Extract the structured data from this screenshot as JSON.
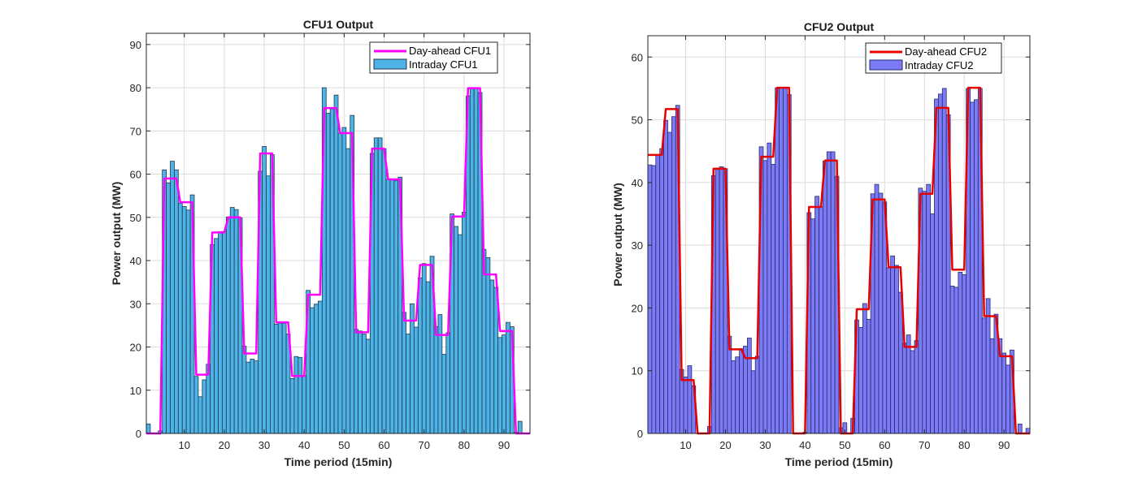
{
  "chart_data": [
    {
      "type": "bar",
      "title": "CFU1 Output",
      "xlabel": "Time period (15min)",
      "ylabel": "Power output (MW)",
      "xlim": [
        0.5,
        96.5
      ],
      "ylim": [
        0,
        92.6
      ],
      "xticks": [
        10,
        20,
        30,
        40,
        50,
        60,
        70,
        80,
        90
      ],
      "yticks": [
        0,
        10,
        20,
        30,
        40,
        50,
        60,
        70,
        80,
        90
      ],
      "grid": true,
      "legend_position": "top-right",
      "x": "periods 1..96",
      "series": [
        {
          "name": "Day-ahead CFU1",
          "kind": "line",
          "color": "#ff00ff",
          "values": [
            0,
            0,
            0,
            0,
            59,
            59,
            59,
            59,
            53.5,
            53.5,
            53.5,
            53.5,
            13.6,
            13.6,
            13.6,
            13.6,
            46.5,
            46.5,
            46.5,
            46.5,
            50,
            50,
            50,
            50,
            18.5,
            18.5,
            18.5,
            18.5,
            64.8,
            64.8,
            64.8,
            64.8,
            25.7,
            25.7,
            25.7,
            25.7,
            13.3,
            13.3,
            13.3,
            13.3,
            32.1,
            32.1,
            32.1,
            32.1,
            75.3,
            75.3,
            75.3,
            75.3,
            69.5,
            69.5,
            69.5,
            69.5,
            23.4,
            23.4,
            23.4,
            23.4,
            65.9,
            65.9,
            65.9,
            65.9,
            58.8,
            58.8,
            58.8,
            58.8,
            26.1,
            26.1,
            26.1,
            26.1,
            39.0,
            39.0,
            39.0,
            39.0,
            22.8,
            22.8,
            22.8,
            22.8,
            50.2,
            50.2,
            50.2,
            50.2,
            79.9,
            79.9,
            79.9,
            79.9,
            36.8,
            36.8,
            36.8,
            36.8,
            23.7,
            23.7,
            23.7,
            23.7,
            0,
            0,
            0,
            0
          ]
        },
        {
          "name": "Intraday CFU1",
          "kind": "bar",
          "color": "#4db3e6",
          "values": [
            2.2,
            0,
            0,
            0.6,
            61,
            58,
            63,
            61,
            53.3,
            52.5,
            51.7,
            55.2,
            13.2,
            8.5,
            12.4,
            16,
            43.7,
            45.1,
            46.7,
            46.7,
            50.1,
            52.3,
            51.8,
            49.9,
            20.2,
            16.5,
            17.2,
            16.8,
            60.7,
            66.4,
            59.6,
            64.5,
            25.3,
            25.5,
            25.5,
            23.0,
            12.7,
            17.8,
            17.6,
            13.4,
            33.1,
            29.1,
            29.9,
            30.6,
            80.0,
            74.1,
            75.1,
            78.3,
            69.5,
            70.8,
            65.9,
            73.6,
            24.1,
            23.7,
            23.0,
            21.8,
            64.8,
            68.4,
            68.4,
            65.9,
            58.8,
            58.8,
            58.5,
            59.3,
            28.0,
            23.0,
            30.0,
            24.6,
            36.0,
            39.3,
            35.1,
            41.0,
            24.7,
            27.5,
            18.3,
            23.3,
            50.8,
            47.9,
            46.0,
            51.2,
            78.1,
            79.9,
            79.9,
            78.9,
            42.6,
            40.7,
            35.5,
            33.8,
            22.2,
            22.8,
            25.7,
            24.7,
            0.3,
            2.8,
            0,
            0
          ]
        }
      ]
    },
    {
      "type": "bar",
      "title": "CFU2 Output",
      "xlabel": "Time period (15min)",
      "ylabel": "Power output (MW)",
      "xlim": [
        0.5,
        96.5
      ],
      "ylim": [
        0,
        63.4
      ],
      "xticks": [
        10,
        20,
        30,
        40,
        50,
        60,
        70,
        80,
        90
      ],
      "yticks": [
        0,
        10,
        20,
        30,
        40,
        50,
        60
      ],
      "grid": true,
      "legend_position": "top-right",
      "x": "periods 1..96",
      "series": [
        {
          "name": "Day-ahead CFU2",
          "kind": "line",
          "color": "#e60000",
          "values": [
            44.4,
            44.4,
            44.4,
            44.4,
            51.7,
            51.7,
            51.7,
            51.7,
            8.5,
            8.5,
            8.5,
            8.5,
            0,
            0,
            0,
            0,
            42.2,
            42.2,
            42.2,
            42.2,
            13.4,
            13.4,
            13.4,
            13.4,
            12.0,
            12.0,
            12.0,
            12.0,
            44.1,
            44.1,
            44.1,
            44.1,
            55.1,
            55.1,
            55.1,
            55.1,
            0,
            0,
            0,
            0,
            36.1,
            36.1,
            36.1,
            36.1,
            43.5,
            43.5,
            43.5,
            43.5,
            0,
            0,
            0,
            0,
            19.8,
            19.8,
            19.8,
            19.8,
            37.3,
            37.3,
            37.3,
            37.3,
            26.5,
            26.5,
            26.5,
            26.5,
            13.8,
            13.8,
            13.8,
            13.8,
            38.2,
            38.2,
            38.2,
            38.2,
            51.9,
            51.9,
            51.9,
            51.9,
            26.1,
            26.1,
            26.1,
            26.1,
            55.1,
            55.1,
            55.1,
            55.1,
            18.7,
            18.7,
            18.7,
            18.7,
            12.3,
            12.3,
            12.3,
            12.3,
            0,
            0,
            0,
            0
          ]
        },
        {
          "name": "Intraday CFU2",
          "kind": "bar",
          "color": "#7b7bf7",
          "values": [
            42.8,
            42.7,
            44.4,
            45.4,
            49.9,
            48.0,
            50.5,
            52.3,
            10.2,
            9.0,
            10.8,
            7.6,
            0,
            0,
            0,
            1.1,
            41.1,
            42.3,
            42.5,
            42.2,
            15.5,
            11.6,
            12.2,
            13.5,
            13.9,
            15.2,
            10.0,
            12.3,
            45.7,
            43.5,
            46.3,
            42.9,
            55.1,
            55.1,
            55.1,
            54.0,
            0,
            0,
            0,
            0.2,
            35.2,
            34.2,
            37.8,
            36.2,
            43.4,
            44.9,
            44.9,
            41.0,
            0.9,
            1.7,
            0,
            2.4,
            18.1,
            16.9,
            20.7,
            18.2,
            38.2,
            39.7,
            38.3,
            36.9,
            26.4,
            28.3,
            26.8,
            22.5,
            14.4,
            15.7,
            13.2,
            14.8,
            39.1,
            38.6,
            39.7,
            35.0,
            53.3,
            54.1,
            55.0,
            50.8,
            23.5,
            23.3,
            25.7,
            25.3,
            55.0,
            52.8,
            53.2,
            55.0,
            18.4,
            21.5,
            15.1,
            19.0,
            15.1,
            12.8,
            10.9,
            13.3,
            0,
            1.5,
            0,
            0.8
          ]
        }
      ]
    }
  ]
}
